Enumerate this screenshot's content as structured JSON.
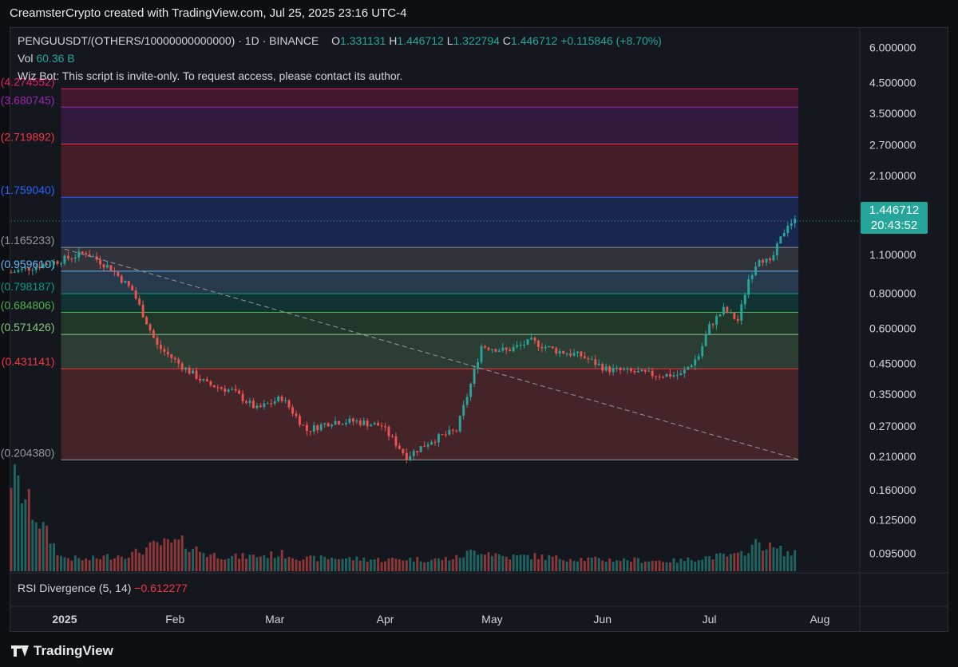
{
  "header": {
    "attribution": "CreamsterCrypto created with TradingView.com, Jul 25, 2025 23:16 UTC-4"
  },
  "legend": {
    "symbol": "PENGUUSDT/(OTHERS/10000000000000) · 1D · BINANCE",
    "open_label": "O",
    "open": "1.331131",
    "high_label": "H",
    "high": "1.446712",
    "low_label": "L",
    "low": "1.322794",
    "close_label": "C",
    "close": "1.446712",
    "change": "+0.115846 (+8.70%)",
    "vol_label": "Vol",
    "vol": "60.36 B",
    "indicator_note": "Wiz Bot: This script is invite-only. To request access, please contact its author.",
    "rsi_label": "RSI Divergence (5, 14)",
    "rsi_value": "−0.612277"
  },
  "price_tag": {
    "price": "1.446712",
    "countdown": "20:43:52"
  },
  "footer": {
    "brand": "TradingView"
  },
  "colors": {
    "up": "#26a69a",
    "down": "#ef5350",
    "bg": "#15171e",
    "accent": "#26a69a"
  },
  "chart_data": {
    "type": "candlestick",
    "title": "PENGUUSDT/(OTHERS/10000000000000) · 1D · BINANCE",
    "y_scale": "log",
    "ylim": [
      0.082,
      7.0
    ],
    "y_ticks": [
      "6.000000",
      "4.500000",
      "3.500000",
      "2.700000",
      "2.100000",
      "1.100000",
      "0.800000",
      "0.600000",
      "0.450000",
      "0.350000",
      "0.270000",
      "0.210000",
      "0.160000",
      "0.125000",
      "0.095000"
    ],
    "x_ticks": [
      "2025",
      "Feb",
      "Mar",
      "Apr",
      "May",
      "Jun",
      "Jul",
      "Aug"
    ],
    "x_tick_dates": [
      "2025-01-01",
      "2025-02-01",
      "2025-03-01",
      "2025-04-01",
      "2025-05-01",
      "2025-06-01",
      "2025-07-01",
      "2025-08-01"
    ],
    "x_range": [
      "2024-12-17",
      "2025-08-12"
    ],
    "fib": {
      "start_date": "2024-12-31",
      "end_date": "2025-07-26",
      "levels": [
        {
          "label": "0 (0.204380)",
          "value": 0.20438,
          "color": "#9598a1"
        },
        {
          "label": "0.236 (0.431141)",
          "value": 0.431141,
          "color": "#f23645"
        },
        {
          "label": "0.382 (0.571426)",
          "value": 0.571426,
          "color": "#81c784"
        },
        {
          "label": "0.5 (0.684806)",
          "value": 0.684806,
          "color": "#4caf50"
        },
        {
          "label": "0.618 (0.798187)",
          "value": 0.798187,
          "color": "#089981"
        },
        {
          "label": "0.786 (0.959610)",
          "value": 0.95961,
          "color": "#64b5f6"
        },
        {
          "label": "1 (1.165233)",
          "value": 1.165233,
          "color": "#9598a1"
        },
        {
          "label": "1.618 (1.759040)",
          "value": 1.75904,
          "color": "#2962ff"
        },
        {
          "label": "2.618 (2.719892)",
          "value": 2.719892,
          "color": "#f23645"
        },
        {
          "label": "3.618 (3.680745)",
          "value": 3.680745,
          "color": "#9c27b0"
        },
        {
          "label": "4.236 (4.274552)",
          "value": 4.274552,
          "color": "#e91e63"
        }
      ],
      "fills": [
        "#ef5350",
        "#81c784",
        "#4caf50",
        "#089981",
        "#64b5f6",
        "#9598a1",
        "#2962ff",
        "#f23645",
        "#9c27b0",
        "#e91e63"
      ]
    },
    "trendline": {
      "from": [
        "2025-01-01",
        1.15
      ],
      "to": [
        "2025-07-26",
        0.205
      ]
    },
    "last_price": 1.446712,
    "series": [
      {
        "date": "2024-12-17",
        "close": 0.95,
        "volume": 1.0
      },
      {
        "date": "2024-12-31",
        "close": 1.05,
        "volume": 0.15
      },
      {
        "date": "2025-01-07",
        "close": 1.12,
        "volume": 0.12
      },
      {
        "date": "2025-01-14",
        "close": 0.98,
        "volume": 0.16
      },
      {
        "date": "2025-01-20",
        "close": 0.82,
        "volume": 0.18
      },
      {
        "date": "2025-01-27",
        "close": 0.52,
        "volume": 0.28
      },
      {
        "date": "2025-02-03",
        "close": 0.44,
        "volume": 0.3
      },
      {
        "date": "2025-02-10",
        "close": 0.38,
        "volume": 0.18
      },
      {
        "date": "2025-02-17",
        "close": 0.36,
        "volume": 0.15
      },
      {
        "date": "2025-02-24",
        "close": 0.31,
        "volume": 0.16
      },
      {
        "date": "2025-03-03",
        "close": 0.34,
        "volume": 0.18
      },
      {
        "date": "2025-03-10",
        "close": 0.26,
        "volume": 0.13
      },
      {
        "date": "2025-03-17",
        "close": 0.28,
        "volume": 0.14
      },
      {
        "date": "2025-03-24",
        "close": 0.28,
        "volume": 0.13
      },
      {
        "date": "2025-03-31",
        "close": 0.27,
        "volume": 0.12
      },
      {
        "date": "2025-04-07",
        "close": 0.21,
        "volume": 0.13
      },
      {
        "date": "2025-04-14",
        "close": 0.24,
        "volume": 0.12
      },
      {
        "date": "2025-04-21",
        "close": 0.26,
        "volume": 0.14
      },
      {
        "date": "2025-04-25",
        "close": 0.38,
        "volume": 0.2
      },
      {
        "date": "2025-04-28",
        "close": 0.52,
        "volume": 0.22
      },
      {
        "date": "2025-05-05",
        "close": 0.5,
        "volume": 0.15
      },
      {
        "date": "2025-05-12",
        "close": 0.54,
        "volume": 0.16
      },
      {
        "date": "2025-05-19",
        "close": 0.5,
        "volume": 0.14
      },
      {
        "date": "2025-05-26",
        "close": 0.48,
        "volume": 0.13
      },
      {
        "date": "2025-06-02",
        "close": 0.43,
        "volume": 0.12
      },
      {
        "date": "2025-06-09",
        "close": 0.42,
        "volume": 0.12
      },
      {
        "date": "2025-06-16",
        "close": 0.41,
        "volume": 0.11
      },
      {
        "date": "2025-06-23",
        "close": 0.41,
        "volume": 0.11
      },
      {
        "date": "2025-06-28",
        "close": 0.48,
        "volume": 0.14
      },
      {
        "date": "2025-07-01",
        "close": 0.61,
        "volume": 0.15
      },
      {
        "date": "2025-07-05",
        "close": 0.7,
        "volume": 0.16
      },
      {
        "date": "2025-07-09",
        "close": 0.64,
        "volume": 0.16
      },
      {
        "date": "2025-07-12",
        "close": 0.9,
        "volume": 0.24
      },
      {
        "date": "2025-07-15",
        "close": 1.08,
        "volume": 0.3
      },
      {
        "date": "2025-07-18",
        "close": 1.02,
        "volume": 0.25
      },
      {
        "date": "2025-07-21",
        "close": 1.25,
        "volume": 0.22
      },
      {
        "date": "2025-07-23",
        "close": 1.42,
        "volume": 0.19
      },
      {
        "date": "2025-07-25",
        "close": 1.446712,
        "volume": 0.18
      }
    ]
  }
}
